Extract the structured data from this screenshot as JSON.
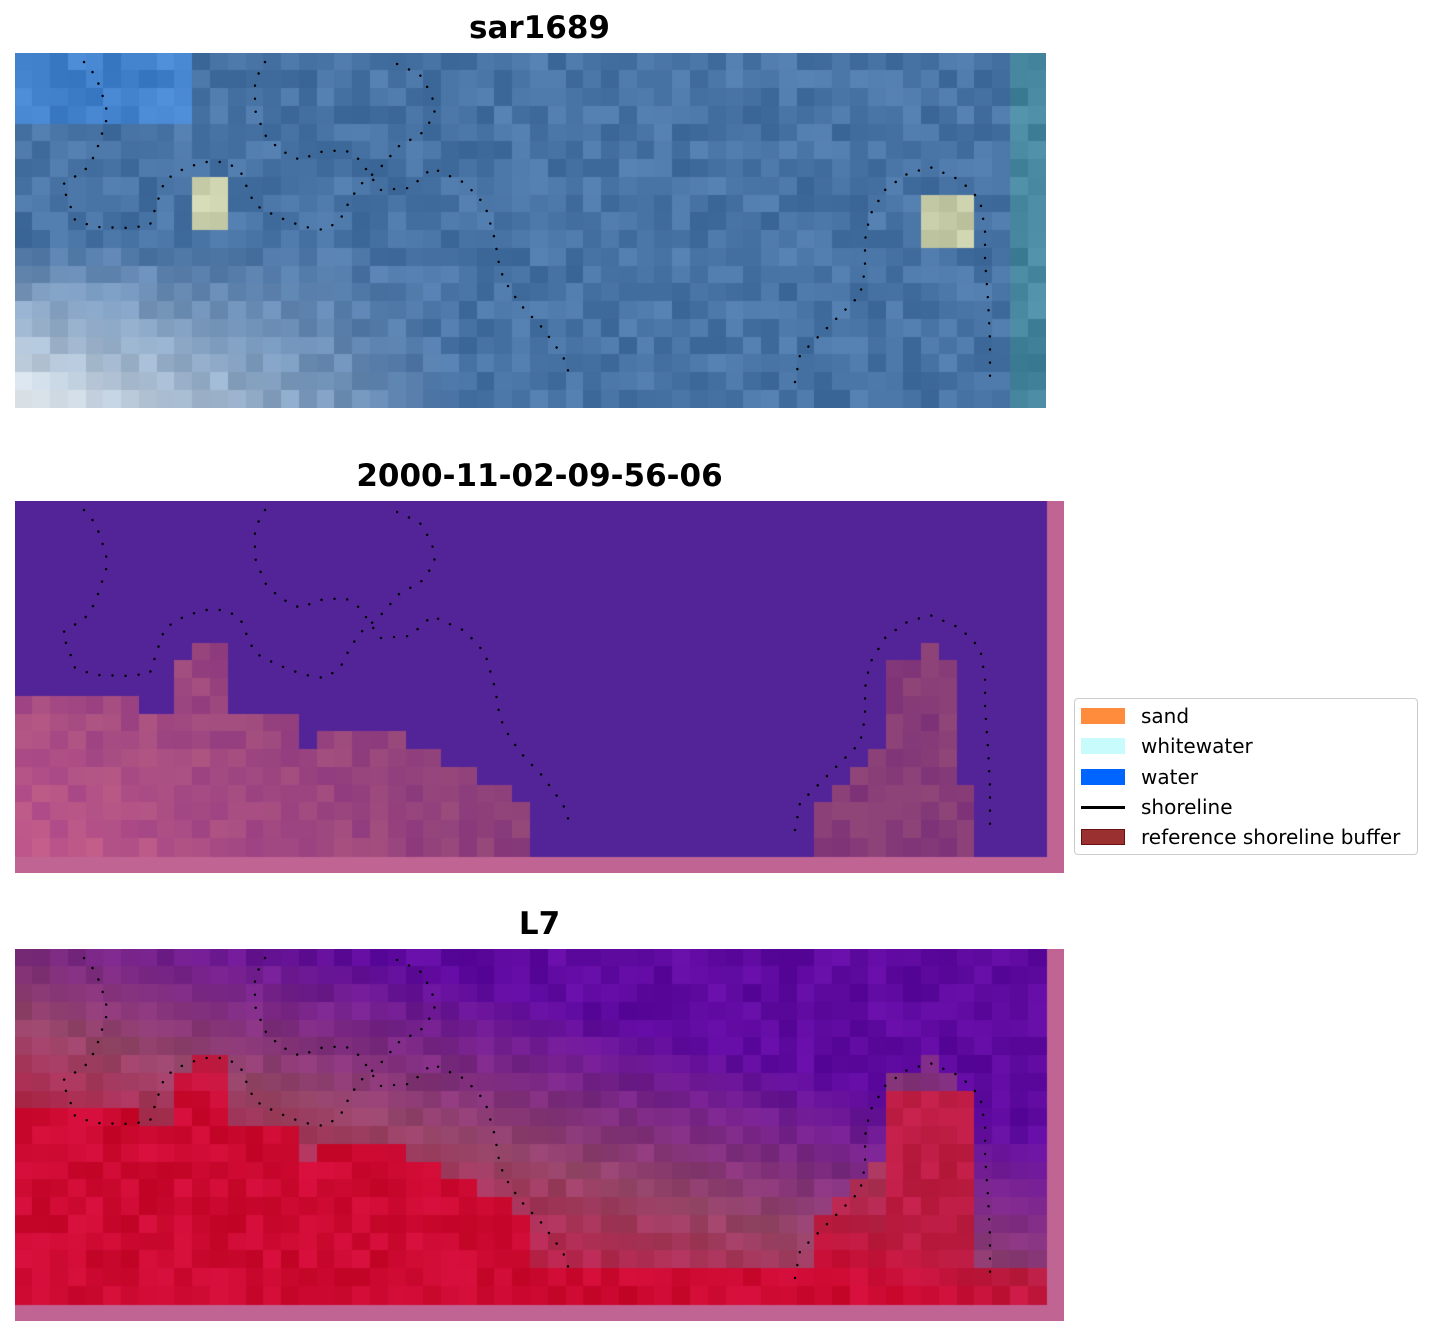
{
  "panels": [
    {
      "title": "sar1689",
      "kind": "rgb"
    },
    {
      "title": "2000-11-02-09-56-06",
      "kind": "classified"
    },
    {
      "title": "L7",
      "kind": "index"
    }
  ],
  "legend": {
    "items": [
      {
        "label": "sand",
        "color": "#ff8c3c",
        "type": "patch"
      },
      {
        "label": "whitewater",
        "color": "#c8fcfc",
        "type": "patch"
      },
      {
        "label": "water",
        "color": "#0064ff",
        "type": "patch"
      },
      {
        "label": "shoreline",
        "color": "#000000",
        "type": "line"
      },
      {
        "label": "reference shoreline buffer",
        "color": "#9b3030",
        "type": "patch"
      }
    ]
  }
}
